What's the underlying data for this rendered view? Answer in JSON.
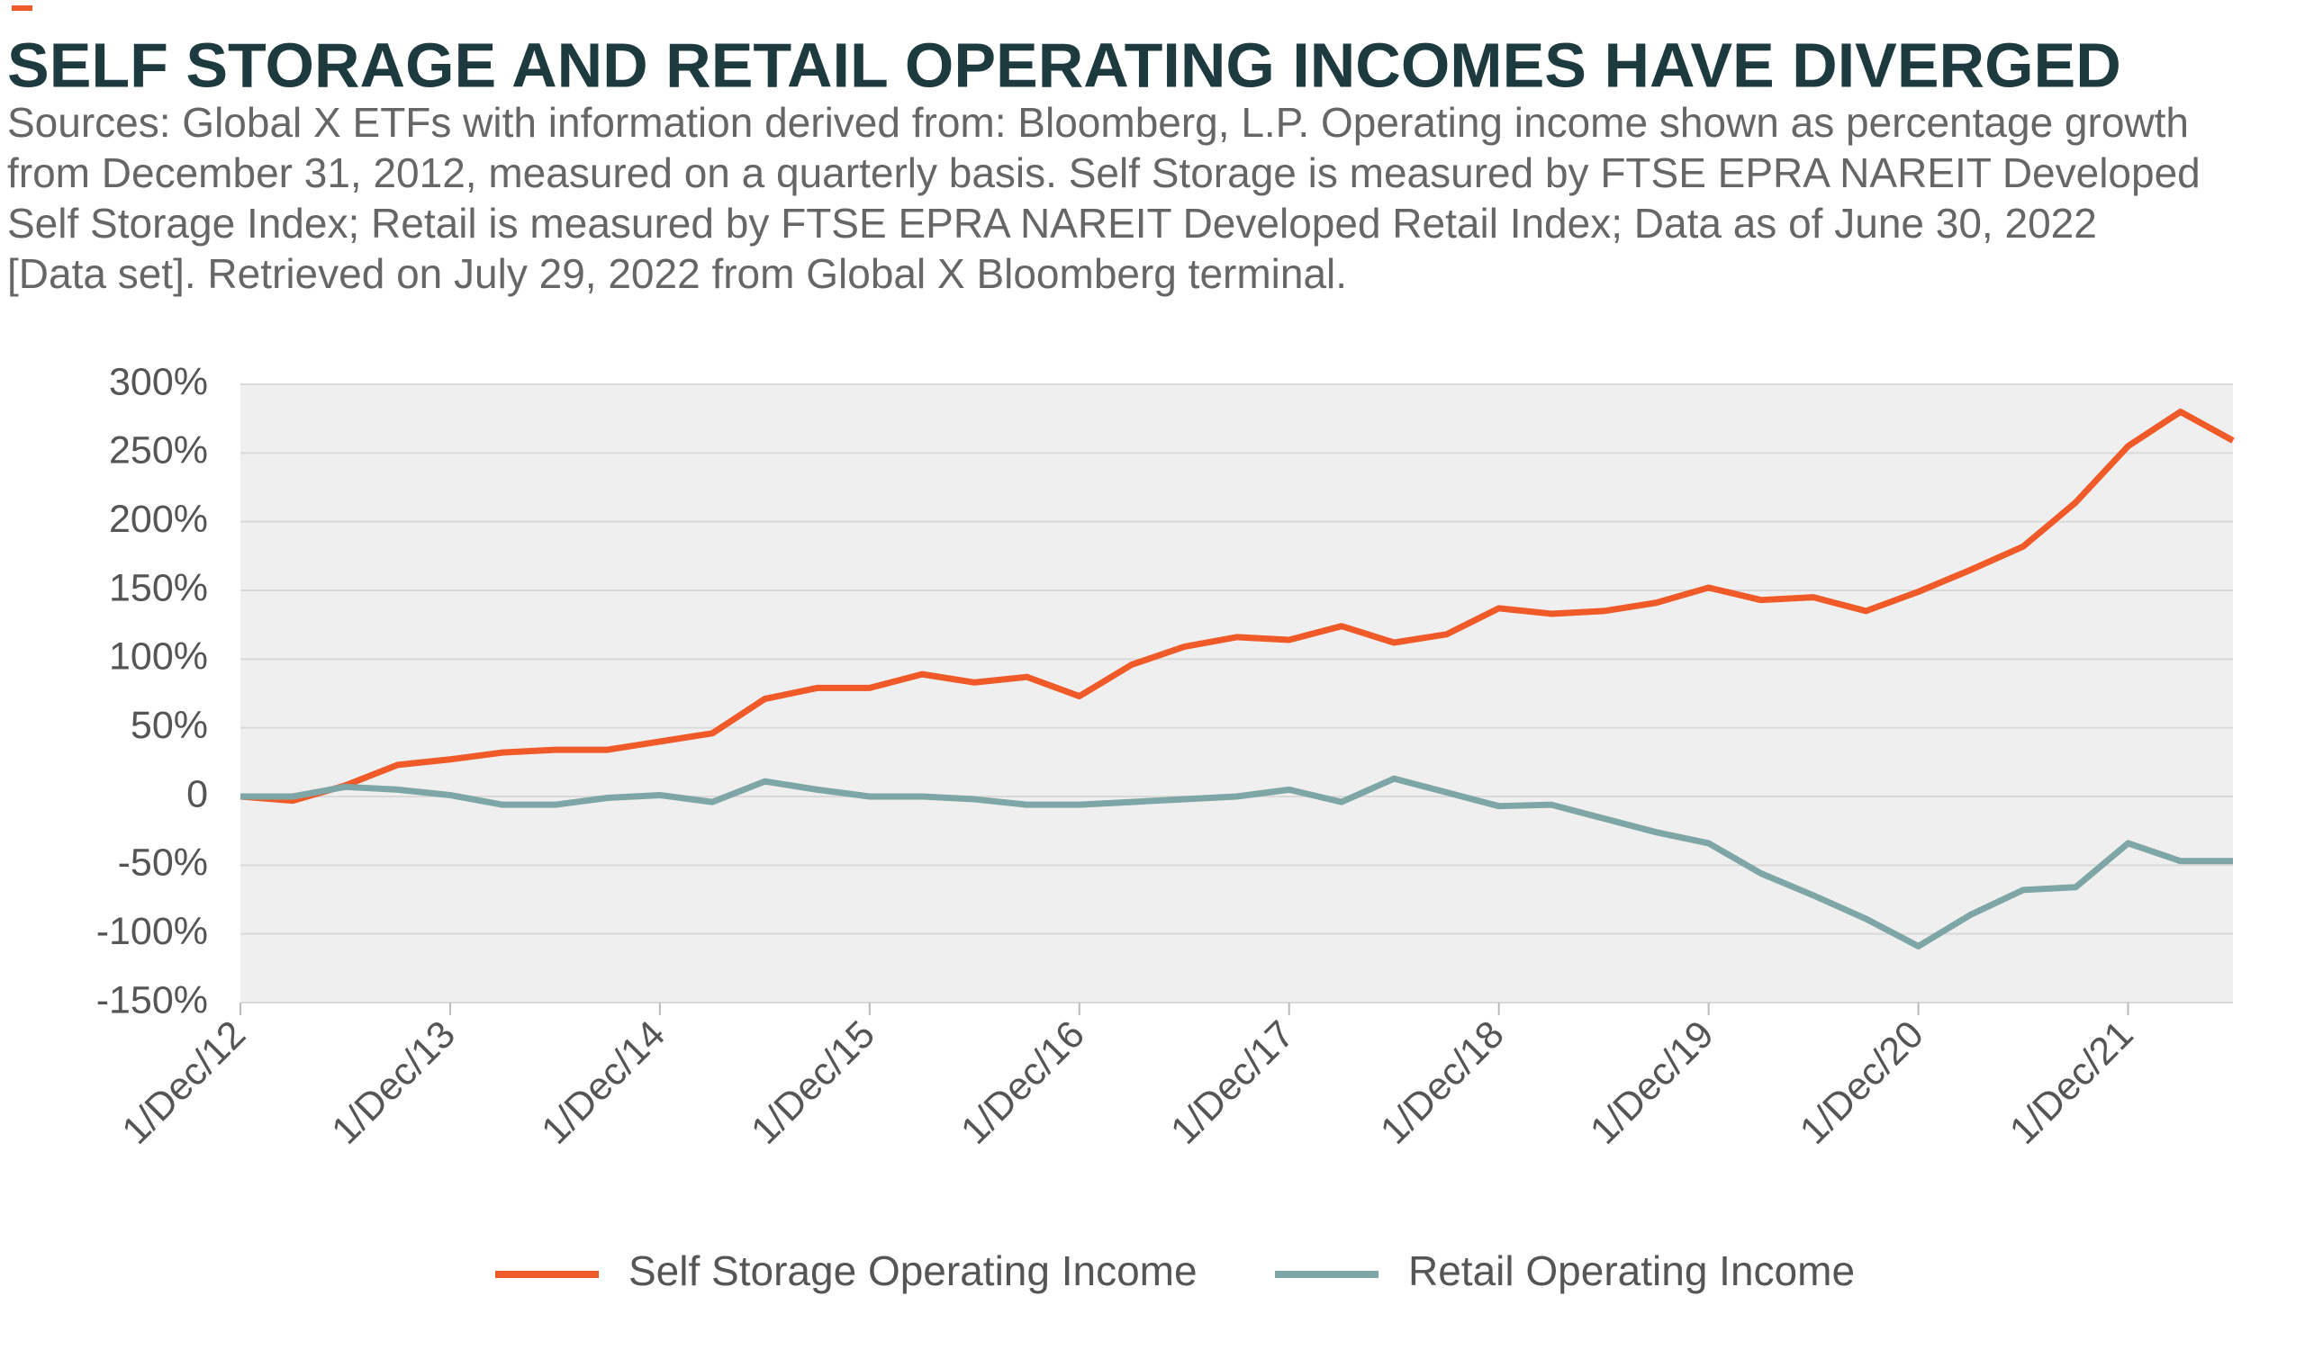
{
  "chart_data": {
    "type": "line",
    "title": "SELF STORAGE AND RETAIL OPERATING INCOMES HAVE DIVERGED",
    "subtitle": [
      "Sources: Global X ETFs with information derived from: Bloomberg, L.P. Operating income shown as percentage growth",
      "from December 31, 2012, measured on a quarterly basis. Self Storage is measured by FTSE EPRA NAREIT Developed",
      "Self Storage Index; Retail is measured by FTSE EPRA NAREIT Developed Retail Index; Data as of June 30, 2022",
      "[Data set]. Retrieved on July 29, 2022 from Global X Bloomberg terminal."
    ],
    "categories": [
      "1/Dec/12",
      null,
      null,
      null,
      "1/Dec/13",
      null,
      null,
      null,
      "1/Dec/14",
      null,
      null,
      null,
      "1/Dec/15",
      null,
      null,
      null,
      "1/Dec/16",
      null,
      null,
      null,
      "1/Dec/17",
      null,
      null,
      null,
      "1/Dec/18",
      null,
      null,
      null,
      "1/Dec/19",
      null,
      null,
      null,
      "1/Dec/20",
      null,
      null,
      null,
      "1/Dec/21",
      null,
      null
    ],
    "series": [
      {
        "name": "Self Storage Operating Income",
        "color": "#f05a28",
        "values": [
          0,
          -3,
          8,
          23,
          27,
          32,
          34,
          34,
          40,
          46,
          71,
          79,
          79,
          89,
          83,
          87,
          73,
          96,
          109,
          116,
          114,
          124,
          112,
          118,
          137,
          133,
          135,
          141,
          152,
          143,
          145,
          135,
          149,
          165,
          182,
          214,
          255,
          280,
          259
        ]
      },
      {
        "name": "Retail Operating Income",
        "color": "#7fa6a6",
        "values": [
          0,
          0,
          7,
          5,
          1,
          -6,
          -6,
          -1,
          1,
          -4,
          11,
          5,
          0,
          0,
          -2,
          -6,
          -6,
          -4,
          -2,
          0,
          5,
          -4,
          13,
          3,
          -7,
          -6,
          -16,
          -26,
          -34,
          -56,
          -72,
          -89,
          -109,
          -86,
          -68,
          -66,
          -34,
          -47,
          -47
        ]
      }
    ],
    "ylim": [
      -150,
      300
    ],
    "yticks": [
      {
        "value": -150,
        "label": "-150%"
      },
      {
        "value": -100,
        "label": "-100%"
      },
      {
        "value": -50,
        "label": "-50%"
      },
      0,
      {
        "value": 50,
        "label": "50%"
      },
      {
        "value": 100,
        "label": "100%"
      },
      {
        "value": 150,
        "label": "150%"
      },
      {
        "value": 200,
        "label": "200%"
      },
      {
        "value": 250,
        "label": "250%"
      },
      {
        "value": 300,
        "label": "300%"
      }
    ],
    "grid": true
  }
}
